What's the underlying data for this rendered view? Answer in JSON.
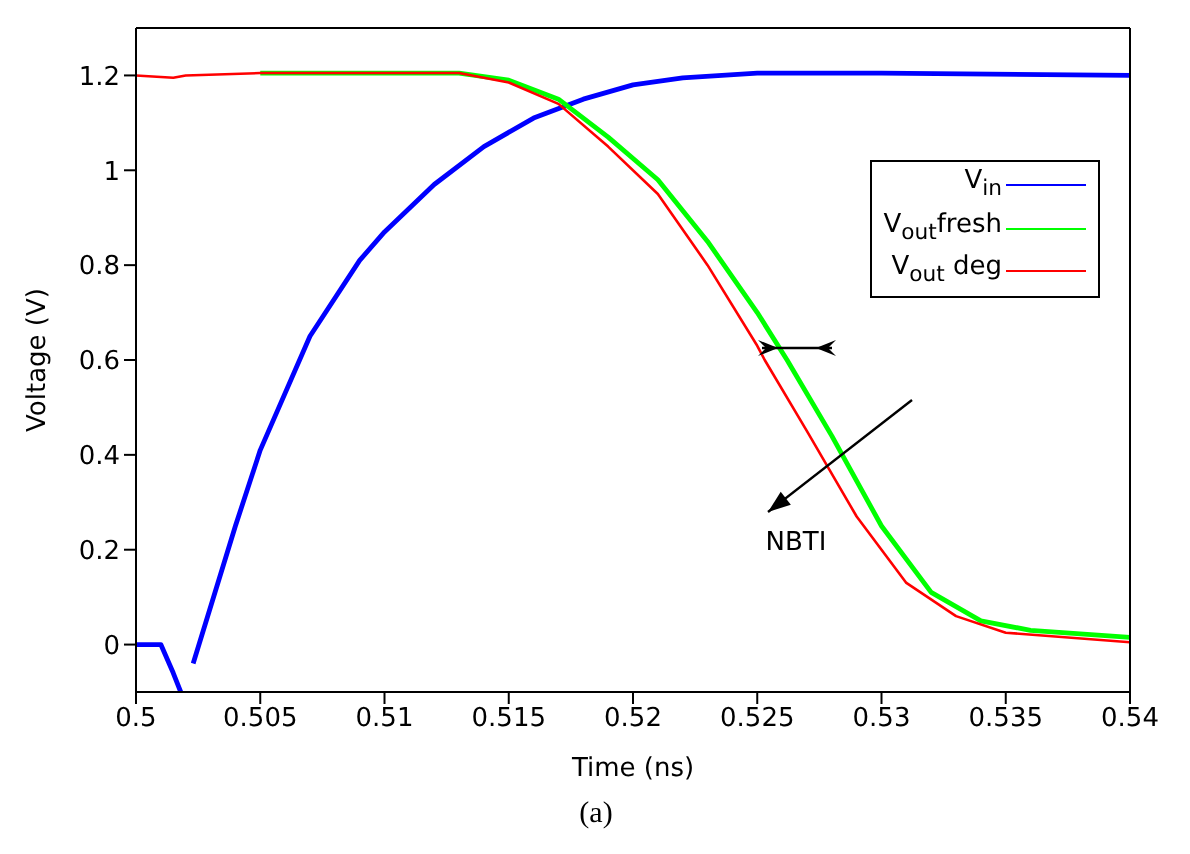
{
  "chart_data": {
    "type": "line",
    "xlabel": "Time (ns)",
    "ylabel": "Voltage (V)",
    "xlim": [
      0.5,
      0.54
    ],
    "xticks": [
      0.5,
      0.505,
      0.51,
      0.515,
      0.52,
      0.525,
      0.53,
      0.535,
      0.54
    ],
    "ylim": [
      -0.1,
      1.3
    ],
    "yticks": [
      0,
      0.2,
      0.4,
      0.6,
      0.8,
      1,
      1.2
    ],
    "legend": "top right",
    "marker": "none",
    "line_style": "solid",
    "annotations": [
      "NBTI",
      "(a)"
    ],
    "series": [
      {
        "name": "V$_{in}$",
        "color": "#0000ff",
        "x": [
          0.5,
          0.501,
          0.5015,
          0.5018,
          0.502,
          0.5023,
          0.504,
          0.505,
          0.507,
          0.509,
          0.51,
          0.512,
          0.514,
          0.516,
          0.518,
          0.52,
          0.522,
          0.525,
          0.53,
          0.54
        ],
        "values": [
          0,
          0,
          -0.06,
          -0.1,
          null,
          -0.04,
          0.25,
          0.41,
          0.65,
          0.81,
          0.87,
          0.97,
          1.05,
          1.11,
          1.15,
          1.18,
          1.195,
          1.205,
          1.205,
          1.2
        ]
      },
      {
        "name": "V$_{out}$fresh",
        "color": "#00ff00",
        "x": [
          0.505,
          0.513,
          0.515,
          0.517,
          0.519,
          0.521,
          0.523,
          0.525,
          0.5262,
          0.528,
          0.53,
          0.532,
          0.534,
          0.536,
          0.54
        ],
        "values": [
          1.205,
          1.205,
          1.19,
          1.15,
          1.07,
          0.98,
          0.85,
          0.7,
          0.6,
          0.44,
          0.25,
          0.11,
          0.05,
          0.03,
          0.015
        ]
      },
      {
        "name": "V$_{out}$ deg",
        "color": "#ff0000",
        "x": [
          0.5,
          0.5015,
          0.502,
          0.505,
          0.513,
          0.515,
          0.517,
          0.519,
          0.521,
          0.523,
          0.525,
          0.5253,
          0.527,
          0.529,
          0.531,
          0.533,
          0.535,
          0.54
        ],
        "values": [
          1.2,
          1.195,
          1.2,
          1.205,
          1.205,
          1.185,
          1.14,
          1.05,
          0.95,
          0.8,
          0.63,
          0.6,
          0.45,
          0.27,
          0.13,
          0.06,
          0.025,
          0.005
        ]
      }
    ]
  }
}
